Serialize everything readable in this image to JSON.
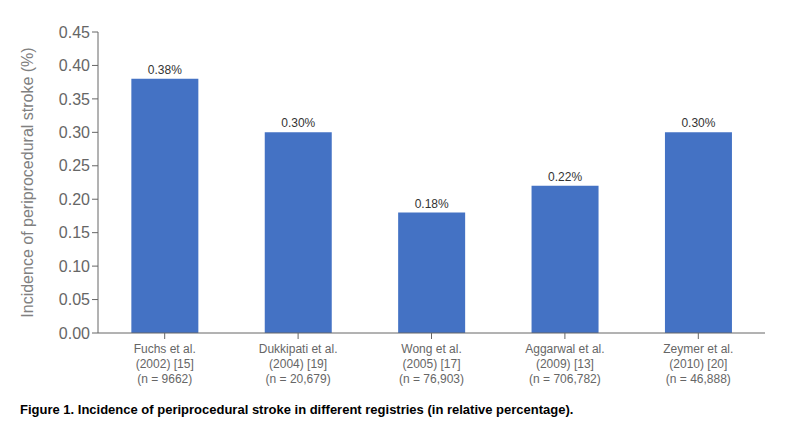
{
  "chart_data": {
    "type": "bar",
    "caption": "Figure 1. Incidence of periprocedural stroke in different registries (in relative percentage).",
    "ylabel": "Incidence of periprocedural stroke (%)",
    "categories": [
      "Fuchs et al.\n(2002) [15]\n(n = 9662)",
      "Dukkipati et al.\n(2004) [19]\n(n = 20,679)",
      "Wong et al.\n(2005) [17]\n(n = 76,903)",
      "Aggarwal et al.\n(2009) [13]\n(n = 706,782)",
      "Zeymer et al.\n(2010) [20]\n(n = 46,888)"
    ],
    "values": [
      0.38,
      0.3,
      0.18,
      0.22,
      0.3
    ],
    "value_labels": [
      "0.38%",
      "0.30%",
      "0.18%",
      "0.22%",
      "0.30%"
    ],
    "data_labels": true,
    "color": "#4472C4",
    "ylim": [
      0,
      0.45
    ],
    "yticks": [
      {
        "value": 0,
        "label": "0.00"
      },
      {
        "value": 0.05,
        "label": "0.05"
      },
      {
        "value": 0.1,
        "label": "0.10"
      },
      {
        "value": 0.15,
        "label": "0.15"
      },
      {
        "value": 0.2,
        "label": "0.20"
      },
      {
        "value": 0.25,
        "label": "0.25"
      },
      {
        "value": 0.3,
        "label": "0.30"
      },
      {
        "value": 0.35,
        "label": "0.35"
      },
      {
        "value": 0.4,
        "label": "0.40"
      },
      {
        "value": 0.45,
        "label": "0.45"
      }
    ],
    "grid": false
  }
}
